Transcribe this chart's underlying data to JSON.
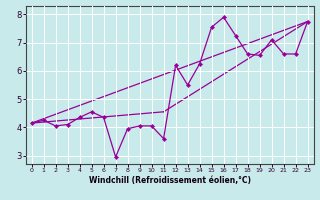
{
  "xlabel": "Windchill (Refroidissement éolien,°C)",
  "bg_color": "#c8eaea",
  "line_color": "#990099",
  "grid_color": "#ffffff",
  "data_x": [
    0,
    1,
    2,
    3,
    4,
    5,
    6,
    7,
    8,
    9,
    10,
    11,
    12,
    13,
    14,
    15,
    16,
    17,
    18,
    19,
    20,
    21,
    22,
    23
  ],
  "data_y": [
    4.15,
    4.25,
    4.05,
    4.1,
    4.35,
    4.55,
    4.35,
    2.95,
    3.95,
    4.05,
    4.05,
    3.6,
    6.2,
    5.5,
    6.25,
    7.55,
    7.9,
    7.25,
    6.6,
    6.55,
    7.1,
    6.6,
    6.6,
    7.75
  ],
  "trend1_x": [
    0,
    23
  ],
  "trend1_y": [
    4.15,
    7.75
  ],
  "trend2_x": [
    0,
    11
  ],
  "trend2_y": [
    4.15,
    4.55
  ],
  "trend3_x": [
    11,
    23
  ],
  "trend3_y": [
    4.55,
    7.75
  ],
  "xlim": [
    -0.5,
    23.5
  ],
  "ylim": [
    2.7,
    8.3
  ],
  "xticks": [
    0,
    1,
    2,
    3,
    4,
    5,
    6,
    7,
    8,
    9,
    10,
    11,
    12,
    13,
    14,
    15,
    16,
    17,
    18,
    19,
    20,
    21,
    22,
    23
  ],
  "yticks": [
    3,
    4,
    5,
    6,
    7,
    8
  ],
  "xlabel_fontsize": 5.5,
  "tick_fontsize_x": 4.5,
  "tick_fontsize_y": 6.0
}
